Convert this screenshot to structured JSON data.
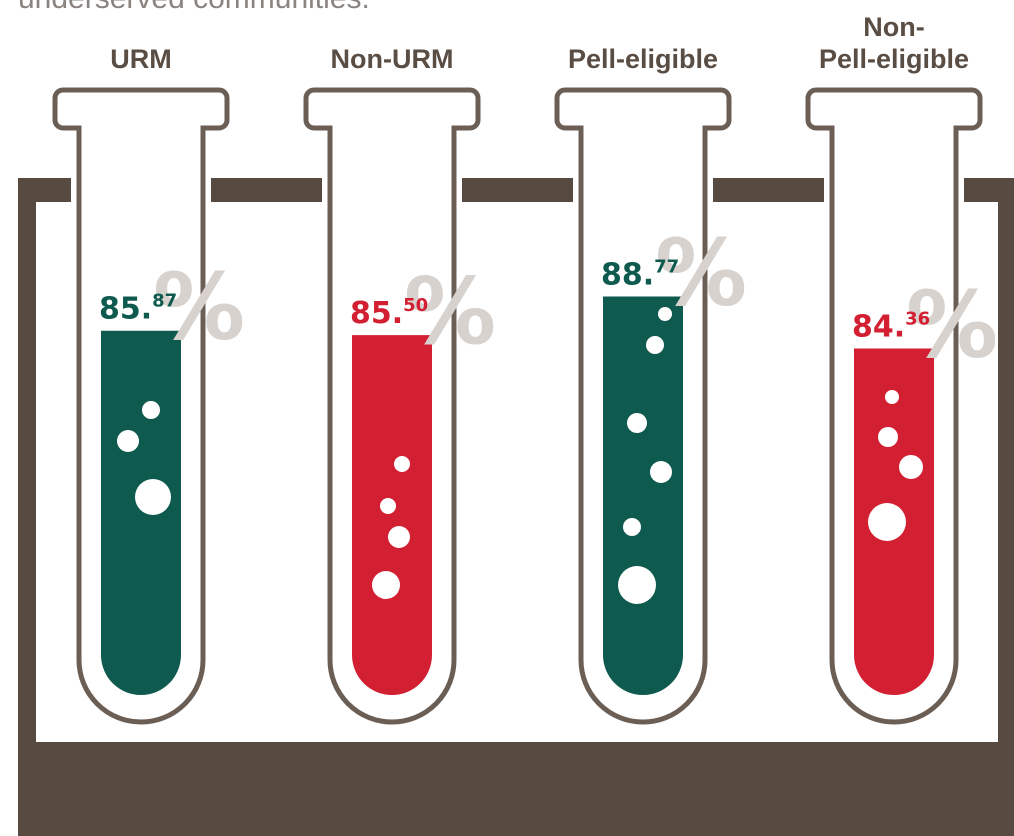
{
  "chart_data": {
    "type": "test-tube",
    "subtitle": "underserved communities.",
    "categories": [
      "URM",
      "Non-URM",
      "Pell-eligible",
      "Non-\nPell-eligible"
    ],
    "values": [
      85.87,
      85.5,
      88.77,
      84.36
    ],
    "value_labels": [
      "85.87%",
      "85.50%",
      "88.77%",
      "84.36%"
    ],
    "colors": [
      "#0f5a4e",
      "#d21f32",
      "#0f5a4e",
      "#d21f32"
    ],
    "ylim": [
      55,
      100
    ]
  }
}
